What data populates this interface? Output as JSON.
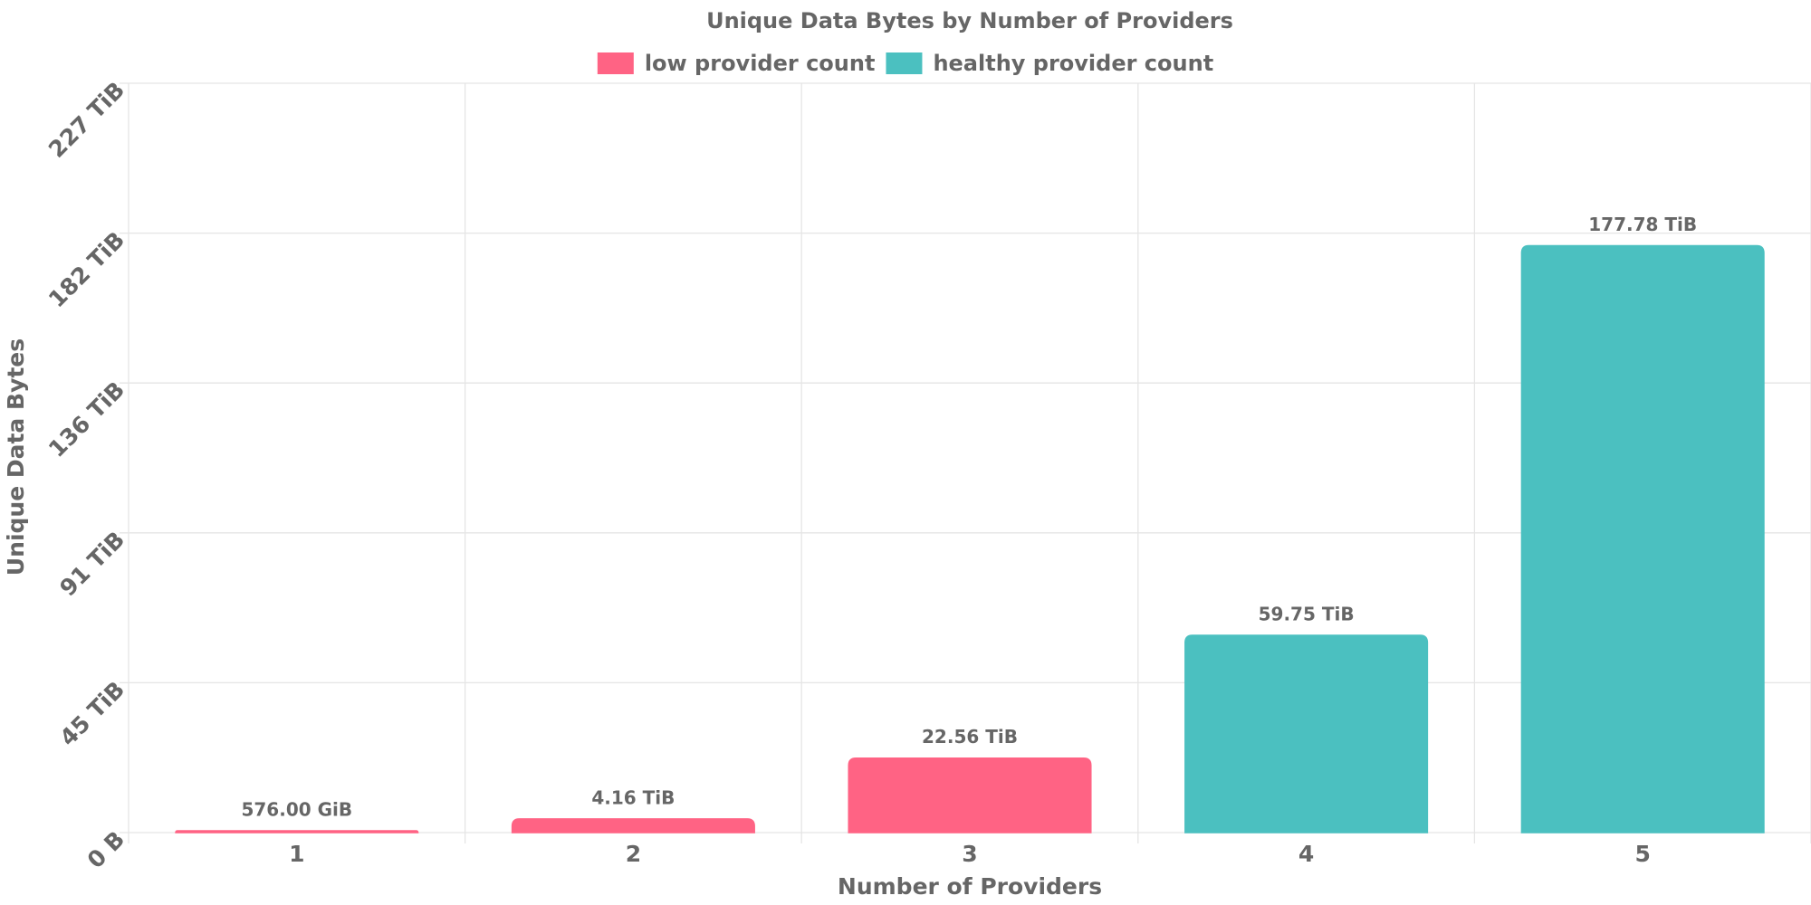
{
  "chart_data": {
    "type": "bar",
    "title": "Unique Data Bytes by Number of Providers",
    "x_label": "Number of Providers",
    "y_label": "Unique Data Bytes",
    "categories": [
      "1",
      "2",
      "3",
      "4",
      "5"
    ],
    "series": [
      {
        "name": "low provider count",
        "color": "#ff6384",
        "values": [
          0.5625,
          4.16,
          22.56,
          null,
          null
        ],
        "value_labels": [
          "576.00 GiB",
          "4.16 TiB",
          "22.56 TiB",
          null,
          null
        ]
      },
      {
        "name": "healthy provider count",
        "color": "#4bc0c0",
        "values": [
          null,
          null,
          null,
          59.75,
          177.78
        ],
        "value_labels": [
          null,
          null,
          null,
          "59.75 TiB",
          "177.78 TiB"
        ]
      }
    ],
    "ylim": [
      0,
      227
    ],
    "yticks": [
      {
        "value": 0,
        "label": "0 B"
      },
      {
        "value": 45.4,
        "label": "45 TiB"
      },
      {
        "value": 90.8,
        "label": "91 TiB"
      },
      {
        "value": 136.2,
        "label": "136 TiB"
      },
      {
        "value": 181.6,
        "label": "182 TiB"
      },
      {
        "value": 227,
        "label": "227 TiB"
      }
    ],
    "grid": true,
    "legend": "top"
  }
}
